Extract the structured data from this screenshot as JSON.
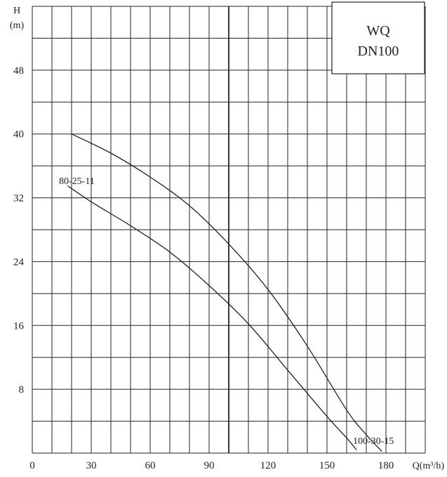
{
  "chart_data": {
    "type": "line",
    "title_box": [
      "WQ",
      "DN100"
    ],
    "ylabel_top": "H",
    "ylabel_unit": "(m)",
    "xlabel": "Q(m³/h)",
    "xlim": [
      0,
      200
    ],
    "ylim": [
      0,
      56
    ],
    "x_major_step": 10,
    "y_major_step": 4,
    "x_ticks": [
      0,
      30,
      60,
      90,
      120,
      150,
      180
    ],
    "y_ticks": [
      8,
      16,
      24,
      32,
      40,
      48
    ],
    "x_tick_labels": [
      "0",
      "30",
      "60",
      "90",
      "120",
      "150",
      "180"
    ],
    "y_tick_labels": [
      "8",
      "16",
      "24",
      "32",
      "40",
      "48"
    ],
    "grid": true,
    "emphasis_x": 100,
    "series": [
      {
        "name": "100-30-15",
        "x": [
          20,
          40,
          60,
          80,
          100,
          120,
          140,
          160,
          170,
          178
        ],
        "y": [
          40,
          37.6,
          34.6,
          31,
          26.2,
          20.5,
          13.4,
          5.4,
          2.3,
          0.2
        ]
      },
      {
        "name": "80-25-11",
        "x": [
          18,
          30,
          50,
          70,
          90,
          110,
          130,
          150,
          160,
          165
        ],
        "y": [
          33.5,
          31.5,
          28.5,
          25.2,
          21,
          16.2,
          10.4,
          4.6,
          1.9,
          0.4
        ]
      }
    ]
  }
}
